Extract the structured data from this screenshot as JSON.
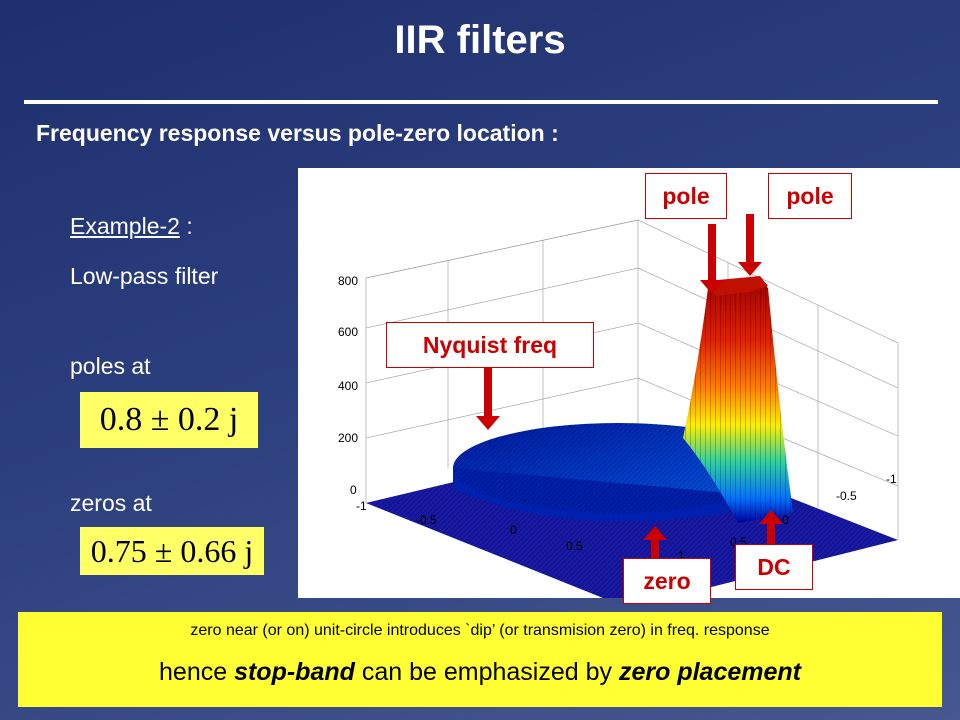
{
  "slide": {
    "title": "IIR filters",
    "subtitle": "Frequency response versus pole-zero location :"
  },
  "left": {
    "example": "Example-2",
    "example_colon": ":",
    "filter": "Low-pass filter",
    "poles_label": "poles at",
    "poles_value": "0.8 ± 0.2 j",
    "zeros_label": "zeros at",
    "zeros_value": "0.75 ± 0.66 j"
  },
  "plot": {
    "z_ticks": [
      "800",
      "600",
      "400",
      "200",
      "0"
    ],
    "x_ticks": [
      "-1",
      "-0.5",
      "0",
      "0.5",
      "1"
    ],
    "y_ticks": [
      "-1",
      "-0.5",
      "0",
      "0.5",
      "1"
    ],
    "callouts": {
      "pole1": "pole",
      "pole2": "pole",
      "nyquist": "Nyquist freq",
      "zero": "zero",
      "dc": "DC"
    }
  },
  "note": {
    "line1": "zero near (or on) unit-circle introduces `dip’ (or transmision zero) in freq. response",
    "line2_a": "hence ",
    "line2_b": "stop-band",
    "line2_c": " can be emphasized by ",
    "line2_d": "zero placement"
  }
}
